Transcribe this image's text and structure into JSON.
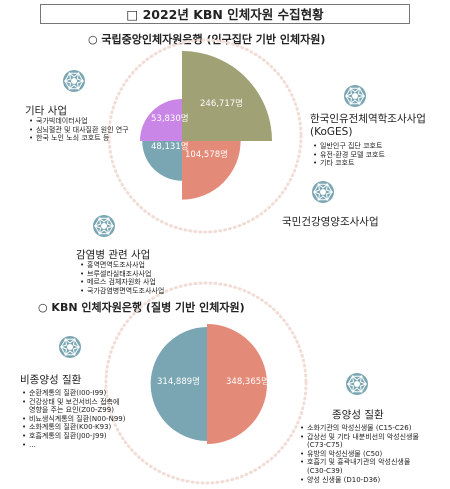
{
  "title": "□ 2022년 KBN 인체자원 수집현황",
  "colors": {
    "olive": "#a0a175",
    "salmon": "#e48a78",
    "purple": "#c986e6",
    "teal": "#7aa6b3",
    "ring": "#f1ddd6",
    "icon": "#7aa6b3"
  },
  "icon_name": "camera-aperture-icon",
  "section1": {
    "title": "○ 국립중앙인체자원은행 (인구집단 기반 인체자원)",
    "categories": {
      "koges": {
        "heading": "한국인유전체역학조사사업\n(KoGES)",
        "items": [
          "일반인구 집단 코호트",
          "유전-환경 모델 코호트",
          "기타 코호트"
        ]
      },
      "other": {
        "heading": "기타 사업",
        "items": [
          "국가빅데이터사업",
          "심뇌혈관 및 대사질환 원인 연구",
          "한국 노인 노쇠 코호트 등"
        ]
      },
      "infection": {
        "heading": "감염병 관련 사업",
        "items": [
          "홍역면역도조사사업",
          "브루셀라실태조사사업",
          "메르스 검체자원화 사업",
          "국가감염병면역도조사사업"
        ]
      },
      "knhanes": {
        "heading": "국민건강영양조사사업"
      }
    }
  },
  "section2": {
    "title": "○ KBN 인체자원은행 (질병 기반 인체자원)",
    "categories": {
      "non_tumor": {
        "heading": "비종양성 질환",
        "items": [
          "순환계통의 질환(I00-I99)",
          "건강상태 및 보건서비스 접촉에\n영향을 주는 요인(Z00-Z99)",
          "비뇨생식계통의 질환(N00-N99)",
          "소화계통의 질환(K00-K93)",
          "호흡계통의 질환(J00-J99)",
          "…"
        ]
      },
      "tumor": {
        "heading": "종양성 질환",
        "items": [
          "소화기관의 악성신생물 (C15-C26)",
          "갑상선 및 기타 내분비선의 악성신생물\n(C73-C75)",
          "유방의 악성신생물 (C50)",
          "호흡기 및 흉곽내기관의 악성신생물\n(C30-C39)",
          "양성 신생물 (D10-D36)"
        ]
      }
    }
  },
  "chart_data": [
    {
      "type": "pie",
      "slices": [
        {
          "label": "한국인유전체역학조사사업 (KoGES)",
          "value": 246717,
          "display": "246,717명",
          "color": "#a0a175"
        },
        {
          "label": "국민건강영양조사사업",
          "value": 104578,
          "display": "104,578명",
          "color": "#e48a78"
        },
        {
          "label": "감염병 관련 사업",
          "value": 48131,
          "display": "48,131명",
          "color": "#7aa6b3"
        },
        {
          "label": "기타 사업",
          "value": 53830,
          "display": "53,830명",
          "color": "#c986e6"
        }
      ]
    },
    {
      "type": "pie",
      "slices": [
        {
          "label": "종양성 질환",
          "value": 348365,
          "display": "348,365명",
          "color": "#e48a78"
        },
        {
          "label": "비종양성 질환",
          "value": 314889,
          "display": "314,889명",
          "color": "#7aa6b3"
        }
      ]
    }
  ]
}
